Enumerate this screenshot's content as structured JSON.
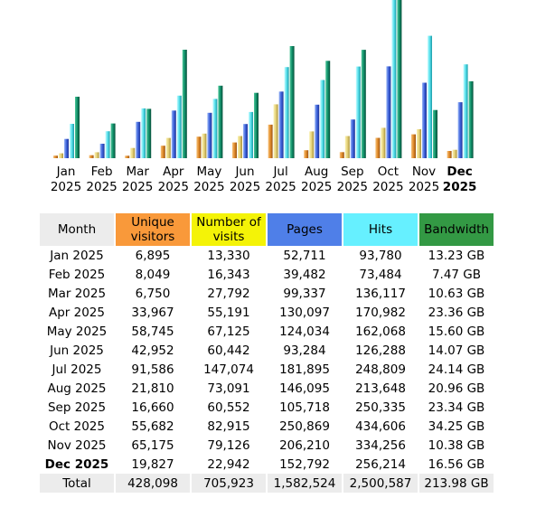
{
  "chart_data": {
    "type": "bar",
    "categories": [
      "Jan 2025",
      "Feb 2025",
      "Mar 2025",
      "Apr 2025",
      "May 2025",
      "Jun 2025",
      "Jul 2025",
      "Aug 2025",
      "Sep 2025",
      "Oct 2025",
      "Nov 2025",
      "Dec 2025"
    ],
    "current_month": "Dec 2025",
    "series": [
      {
        "name": "Unique visitors",
        "color": "#f9993a",
        "values": [
          6895,
          8049,
          6750,
          33967,
          58745,
          42952,
          91586,
          21810,
          16660,
          55682,
          65175,
          19827
        ]
      },
      {
        "name": "Number of visits",
        "color": "#f4f307",
        "values": [
          13330,
          16343,
          27792,
          55191,
          67125,
          60442,
          147074,
          73091,
          60552,
          82915,
          79126,
          22942
        ]
      },
      {
        "name": "Pages",
        "color": "#4f7fe8",
        "values": [
          52711,
          39482,
          99337,
          130097,
          124034,
          93284,
          181895,
          146095,
          105718,
          250869,
          206210,
          152792
        ]
      },
      {
        "name": "Hits",
        "color": "#66f0ff",
        "values": [
          93780,
          73484,
          136117,
          170982,
          162068,
          126288,
          248809,
          213648,
          250335,
          434606,
          334256,
          256214
        ]
      },
      {
        "name": "Bandwidth",
        "color": "#339944",
        "values": [
          13.23,
          7.47,
          10.63,
          23.36,
          15.6,
          14.07,
          24.14,
          20.96,
          23.34,
          34.25,
          10.38,
          16.56
        ]
      }
    ]
  },
  "table": {
    "headers": {
      "month": "Month",
      "unique": "Unique visitors",
      "visits": "Number of visits",
      "pages": "Pages",
      "hits": "Hits",
      "bandwidth": "Bandwidth"
    },
    "rows": [
      {
        "month": "Jan 2025",
        "unique": "6,895",
        "visits": "13,330",
        "pages": "52,711",
        "hits": "93,780",
        "bandwidth": "13.23 GB"
      },
      {
        "month": "Feb 2025",
        "unique": "8,049",
        "visits": "16,343",
        "pages": "39,482",
        "hits": "73,484",
        "bandwidth": "7.47 GB"
      },
      {
        "month": "Mar 2025",
        "unique": "6,750",
        "visits": "27,792",
        "pages": "99,337",
        "hits": "136,117",
        "bandwidth": "10.63 GB"
      },
      {
        "month": "Apr 2025",
        "unique": "33,967",
        "visits": "55,191",
        "pages": "130,097",
        "hits": "170,982",
        "bandwidth": "23.36 GB"
      },
      {
        "month": "May 2025",
        "unique": "58,745",
        "visits": "67,125",
        "pages": "124,034",
        "hits": "162,068",
        "bandwidth": "15.60 GB"
      },
      {
        "month": "Jun 2025",
        "unique": "42,952",
        "visits": "60,442",
        "pages": "93,284",
        "hits": "126,288",
        "bandwidth": "14.07 GB"
      },
      {
        "month": "Jul 2025",
        "unique": "91,586",
        "visits": "147,074",
        "pages": "181,895",
        "hits": "248,809",
        "bandwidth": "24.14 GB"
      },
      {
        "month": "Aug 2025",
        "unique": "21,810",
        "visits": "73,091",
        "pages": "146,095",
        "hits": "213,648",
        "bandwidth": "20.96 GB"
      },
      {
        "month": "Sep 2025",
        "unique": "16,660",
        "visits": "60,552",
        "pages": "105,718",
        "hits": "250,335",
        "bandwidth": "23.34 GB"
      },
      {
        "month": "Oct 2025",
        "unique": "55,682",
        "visits": "82,915",
        "pages": "250,869",
        "hits": "434,606",
        "bandwidth": "34.25 GB"
      },
      {
        "month": "Nov 2025",
        "unique": "65,175",
        "visits": "79,126",
        "pages": "206,210",
        "hits": "334,256",
        "bandwidth": "10.38 GB"
      },
      {
        "month": "Dec 2025",
        "unique": "19,827",
        "visits": "22,942",
        "pages": "152,792",
        "hits": "256,214",
        "bandwidth": "16.56 GB"
      }
    ],
    "total": {
      "month": "Total",
      "unique": "428,098",
      "visits": "705,923",
      "pages": "1,582,524",
      "hits": "2,500,587",
      "bandwidth": "213.98 GB"
    }
  }
}
